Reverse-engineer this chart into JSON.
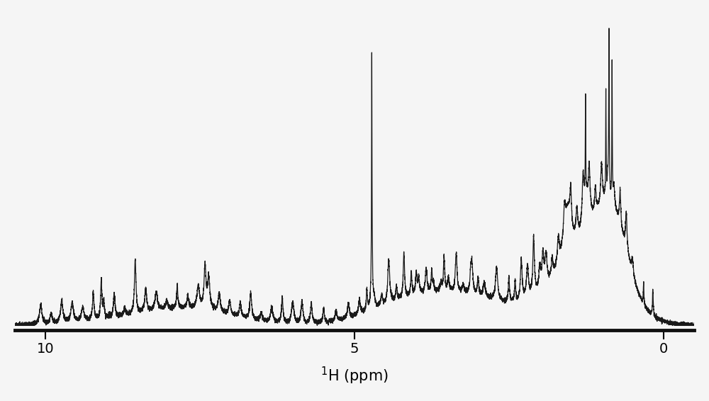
{
  "xlim": [
    10.5,
    -0.5
  ],
  "ylim": [
    -0.015,
    1.05
  ],
  "xlabel": "$^{1}$H (ppm)",
  "xlabel_fontsize": 15,
  "xticks": [
    10,
    5,
    0
  ],
  "background_color": "#f5f5f5",
  "line_color": "#1a1a1a",
  "line_width": 0.9,
  "axis_linewidth": 3.5,
  "figsize": [
    10.0,
    5.66
  ],
  "dpi": 100
}
